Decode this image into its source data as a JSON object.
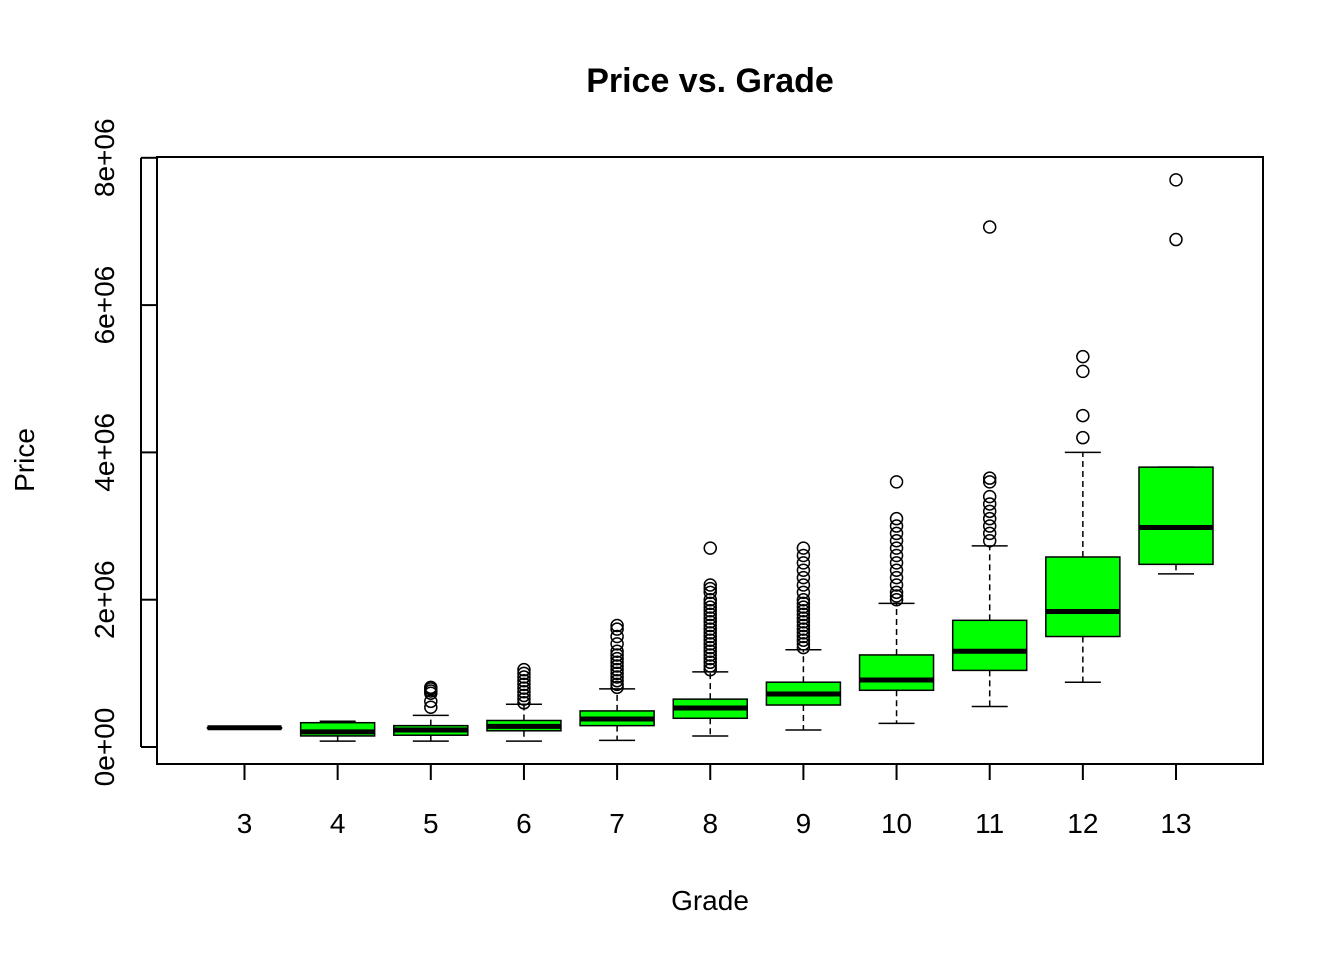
{
  "chart_data": {
    "type": "boxplot",
    "title": "Price vs. Grade",
    "xlabel": "Grade",
    "ylabel": "Price",
    "ylim": [
      -200000,
      8200000
    ],
    "y_ticks": [
      0,
      2000000,
      4000000,
      6000000,
      8000000
    ],
    "y_tick_labels": [
      "0e+00",
      "2e+06",
      "4e+06",
      "6e+06",
      "8e+06"
    ],
    "box_fill": "#00ff00",
    "grid": false,
    "categories": [
      "3",
      "4",
      "5",
      "6",
      "7",
      "8",
      "9",
      "10",
      "11",
      "12",
      "13"
    ],
    "boxes": [
      {
        "grade": "3",
        "whisker_low": 262000,
        "q1": 262000,
        "median": 262000,
        "q3": 262000,
        "whisker_high": 262000,
        "outliers": []
      },
      {
        "grade": "4",
        "whisker_low": 80000,
        "q1": 150000,
        "median": 205000,
        "q3": 330000,
        "whisker_high": 350000,
        "outliers": []
      },
      {
        "grade": "5",
        "whisker_low": 80000,
        "q1": 160000,
        "median": 230000,
        "q3": 290000,
        "whisker_high": 430000,
        "outliers": [
          540000,
          620000,
          730000,
          760000,
          790000,
          810000
        ]
      },
      {
        "grade": "6",
        "whisker_low": 80000,
        "q1": 220000,
        "median": 280000,
        "q3": 360000,
        "whisker_high": 580000,
        "outliers": [
          600000,
          650000,
          700000,
          750000,
          800000,
          850000,
          900000,
          950000,
          1000000,
          1050000
        ]
      },
      {
        "grade": "7",
        "whisker_low": 90000,
        "q1": 290000,
        "median": 380000,
        "q3": 490000,
        "whisker_high": 790000,
        "outliers": [
          810000,
          850000,
          900000,
          950000,
          1000000,
          1050000,
          1100000,
          1150000,
          1200000,
          1250000,
          1300000,
          1400000,
          1500000,
          1600000,
          1650000
        ]
      },
      {
        "grade": "8",
        "whisker_low": 150000,
        "q1": 390000,
        "median": 530000,
        "q3": 650000,
        "whisker_high": 1020000,
        "outliers": [
          1050000,
          1100000,
          1150000,
          1200000,
          1250000,
          1300000,
          1350000,
          1400000,
          1450000,
          1500000,
          1550000,
          1600000,
          1650000,
          1700000,
          1750000,
          1800000,
          1850000,
          1900000,
          1950000,
          2000000,
          2100000,
          2150000,
          2200000,
          2700000
        ]
      },
      {
        "grade": "9",
        "whisker_low": 230000,
        "q1": 570000,
        "median": 720000,
        "q3": 880000,
        "whisker_high": 1320000,
        "outliers": [
          1350000,
          1400000,
          1450000,
          1500000,
          1550000,
          1600000,
          1650000,
          1700000,
          1750000,
          1800000,
          1850000,
          1900000,
          1950000,
          2000000,
          2100000,
          2200000,
          2300000,
          2400000,
          2500000,
          2600000,
          2700000
        ]
      },
      {
        "grade": "10",
        "whisker_low": 320000,
        "q1": 770000,
        "median": 910000,
        "q3": 1250000,
        "whisker_high": 1950000,
        "outliers": [
          2000000,
          2050000,
          2100000,
          2200000,
          2300000,
          2400000,
          2500000,
          2600000,
          2700000,
          2800000,
          2900000,
          3000000,
          3100000,
          3600000
        ]
      },
      {
        "grade": "11",
        "whisker_low": 550000,
        "q1": 1040000,
        "median": 1300000,
        "q3": 1720000,
        "whisker_high": 2730000,
        "outliers": [
          2800000,
          2900000,
          3000000,
          3100000,
          3200000,
          3300000,
          3400000,
          3600000,
          3650000,
          7060000
        ]
      },
      {
        "grade": "12",
        "whisker_low": 880000,
        "q1": 1500000,
        "median": 1840000,
        "q3": 2580000,
        "whisker_high": 4000000,
        "outliers": [
          4200000,
          4500000,
          5100000,
          5300000
        ]
      },
      {
        "grade": "13",
        "whisker_low": 2350000,
        "q1": 2480000,
        "median": 2980000,
        "q3": 3800000,
        "whisker_high": 3800000,
        "outliers": [
          6890000,
          7700000
        ]
      }
    ]
  }
}
